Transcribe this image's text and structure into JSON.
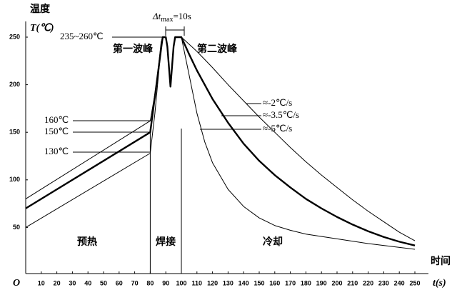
{
  "chart_data": {
    "type": "line",
    "y_label": [
      "温度",
      "T(℃)"
    ],
    "x_label": [
      "时间",
      "t(s)"
    ],
    "origin_label": "O",
    "xlim": [
      0,
      260
    ],
    "ylim": [
      0,
      280
    ],
    "xticks": [
      10,
      20,
      30,
      40,
      50,
      60,
      70,
      80,
      90,
      100,
      110,
      120,
      130,
      140,
      150,
      160,
      170,
      180,
      190,
      200,
      210,
      220,
      230,
      240,
      250
    ],
    "yticks": [
      50,
      100,
      150,
      200,
      250
    ],
    "grid": false,
    "series": [
      {
        "name": "≈-3.5℃/s",
        "color": "#000000",
        "x": [
          0,
          80,
          87,
          88,
          90,
          91,
          93,
          95,
          96,
          100,
          105,
          110,
          120,
          130,
          140,
          150,
          160,
          170,
          180,
          190,
          200,
          210,
          220,
          230,
          240,
          250
        ],
        "values": [
          70,
          150,
          238,
          250,
          250,
          240,
          198,
          240,
          250,
          250,
          232,
          215,
          185,
          160,
          138,
          120,
          105,
          92,
          80,
          70,
          61,
          53,
          46,
          40,
          35,
          31
        ]
      },
      {
        "name": "≈-2℃/s",
        "color": "#000000",
        "x": [
          0,
          80,
          84,
          87,
          88,
          90,
          91,
          93,
          95,
          96,
          100,
          110,
          120,
          130,
          140,
          150,
          160,
          170,
          180,
          190,
          200,
          210,
          220,
          230,
          240,
          250
        ],
        "values": [
          80,
          162,
          200,
          245,
          250,
          250,
          240,
          198,
          240,
          250,
          250,
          235,
          218,
          200,
          183,
          166,
          150,
          134,
          119,
          105,
          92,
          79,
          67,
          56,
          45,
          36
        ]
      },
      {
        "name": "≈-5℃/s",
        "color": "#000000",
        "x": [
          0,
          80,
          83,
          87,
          88,
          90,
          91,
          93,
          95,
          96,
          100,
          105,
          110,
          115,
          120,
          130,
          140,
          150,
          160,
          170,
          180,
          200,
          220,
          250
        ],
        "values": [
          50,
          128,
          170,
          240,
          250,
          250,
          240,
          198,
          240,
          250,
          250,
          210,
          170,
          140,
          118,
          90,
          72,
          60,
          52,
          47,
          43,
          38,
          33,
          27
        ]
      }
    ],
    "annotations": {
      "peak_range": "235~260℃",
      "temp_160": "160℃",
      "temp_150": "150℃",
      "temp_130": "130℃",
      "first_wave": "第一波峰",
      "second_wave": "第二波峰",
      "delta_t": {
        "symbol": "Δt",
        "subscript": "max",
        "text": "=10s"
      },
      "preheat": "预热",
      "welding": "焊接",
      "cooling": "冷却"
    }
  }
}
